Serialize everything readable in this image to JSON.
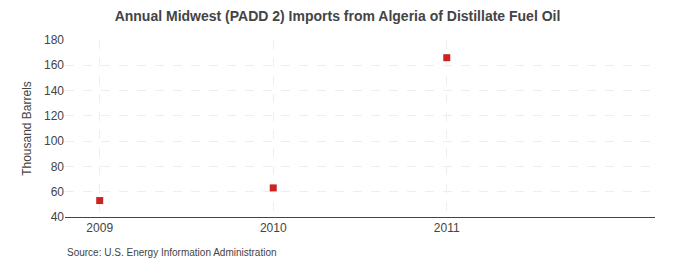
{
  "chart_data": {
    "type": "scatter",
    "title": "Annual Midwest (PADD 2) Imports from Algeria of Distillate Fuel Oil",
    "ylabel": "Thousand Barrels",
    "annotations": [
      "Source: U.S. Energy Information Administration"
    ],
    "x": [
      2009,
      2010,
      2011
    ],
    "values": [
      53,
      63,
      166
    ],
    "xlim": [
      2008.8,
      2012.2
    ],
    "xticks": [
      2009,
      2010,
      2011
    ],
    "ylim": [
      40,
      180
    ],
    "yticks": [
      40,
      60,
      80,
      100,
      120,
      140,
      160,
      180
    ],
    "color": "#cc2222",
    "marker": "square",
    "grid": true
  }
}
